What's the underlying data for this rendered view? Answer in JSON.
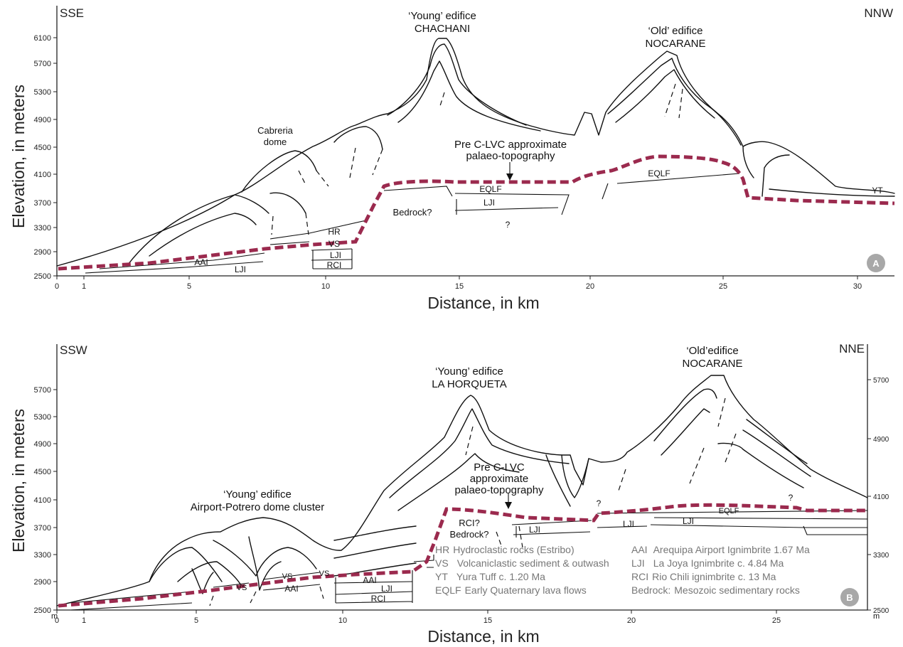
{
  "panel_a": {
    "corner_left": "SSE",
    "corner_right": "NNW",
    "badge": "A",
    "y_axis_title": "Elevation, in meters",
    "x_axis_title": "Distance, in km",
    "y_ticks": [
      "2500",
      "2900",
      "3300",
      "3700",
      "4100",
      "4500",
      "4900",
      "5300",
      "5700",
      "6100"
    ],
    "x_ticks": [
      "0",
      "1",
      "5",
      "10",
      "15",
      "20",
      "25",
      "30"
    ],
    "chachani_line1": "‘Young’ edifice",
    "chachani_line2": "CHACHANI",
    "nocarane_line1": "‘Old’ edifice",
    "nocarane_line2": "NOCARANE",
    "cabreria_line1": "Cabreria",
    "cabreria_line2": "dome",
    "paleo_line1": "Pre C-LVC approximate",
    "paleo_line2": "palaeo-topography",
    "units": {
      "hr": "HR",
      "vs": "VS",
      "lji_small": "LJI",
      "rci": "RCI",
      "aai": "AAI",
      "lji": "LJI",
      "bedrock": "Bedrock?",
      "eqlf": "EQLF",
      "lji_mid": "LJI",
      "question": "?",
      "eqlf_right": "EQLF",
      "yt": "YT"
    }
  },
  "panel_b": {
    "corner_left": "SSW",
    "corner_right": "NNE",
    "badge": "B",
    "y_axis_title": "Elevation, in meters",
    "x_axis_title": "Distance, in km",
    "y_ticks": [
      "2500",
      "2900",
      "3300",
      "3700",
      "4100",
      "4500",
      "4900",
      "5300",
      "5700"
    ],
    "y_ticks_right": [
      "2500",
      "3300",
      "4100",
      "4900",
      "5700"
    ],
    "x_ticks": [
      "0",
      "1",
      "5",
      "10",
      "15",
      "20",
      "25"
    ],
    "m_left": "m",
    "m_right": "m",
    "lahorqueta_line1": "‘Young’ edifice",
    "lahorqueta_line2": "LA HORQUETA",
    "nocarane_line1": "‘Old’edifice",
    "nocarane_line2": "NOCARANE",
    "airport_line1": "‘Young’ edifice",
    "airport_line2": "Airport-Potrero dome cluster",
    "paleo_line1": "Pre C-LVC",
    "paleo_line2": "approximate",
    "paleo_line3": "palaeo-topography",
    "units": {
      "vs": "VS",
      "vs2": "VS",
      "vs3": "VS",
      "aai": "AAI",
      "aai2": "AAI",
      "lji": "LJI",
      "rci": "RCI",
      "rci_bedrock_line1": "RCI?",
      "rci_bedrock_line2": "Bedrock?",
      "lji_mid": "LJI",
      "lji_r1": "LJI",
      "lji_r2": "LJI",
      "eqlf": "EQLF",
      "q1": "?",
      "q2": "?"
    },
    "legend": [
      {
        "code": "HR",
        "text": "Hydroclastic rocks (Estribo)"
      },
      {
        "code": "VS",
        "text": "Volcaniclastic sediment & outwash"
      },
      {
        "code": "YT",
        "text": "Yura Tuff c. 1.20 Ma"
      },
      {
        "code": "EQLF",
        "text": "Early Quaternary lava flows"
      },
      {
        "code": "AAI",
        "text": "Arequipa Airport Ignimbrite 1.67 Ma"
      },
      {
        "code": "LJI",
        "text": "La Joya Ignimbrite c. 4.84 Ma"
      },
      {
        "code": "RCI",
        "text": "Rio Chili ignimbrite c. 13 Ma"
      },
      {
        "code": "Bedrock:",
        "text": "Mesozoic sedimentary rocks"
      }
    ]
  },
  "colors": {
    "paleo_topography": "#9b2a4e",
    "linework": "#111111",
    "legend_text": "#777777",
    "badge": "#a8a8a8"
  }
}
